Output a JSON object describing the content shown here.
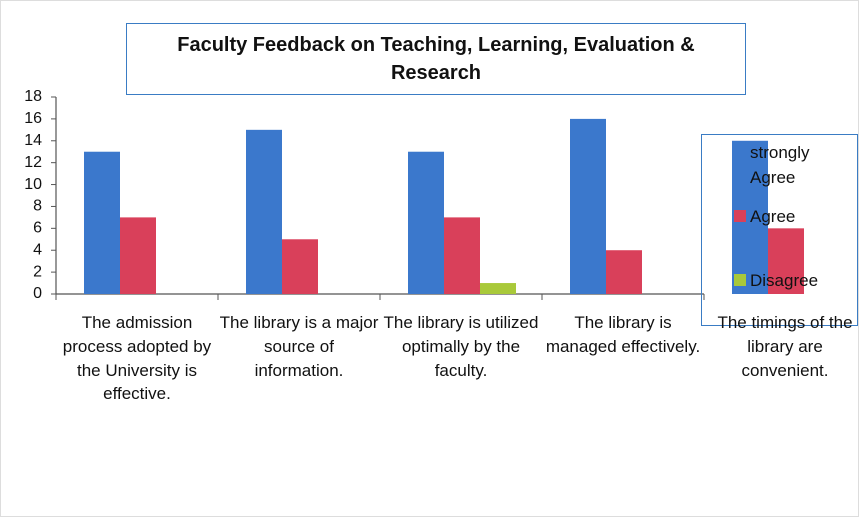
{
  "chart_data": {
    "type": "bar",
    "title": "Faculty Feedback on Teaching, Learning, Evaluation & Research",
    "categories": [
      "The admission process adopted by the University is effective.",
      "The library is a major source of information.",
      "The library is utilized optimally by the faculty.",
      "The library is managed effectively.",
      "The timings of the library are convenient."
    ],
    "series": [
      {
        "name": "strongly Agree",
        "color": "#3b78cc",
        "values": [
          13,
          15,
          13,
          16,
          14
        ]
      },
      {
        "name": "Agree",
        "color": "#d9405a",
        "values": [
          7,
          5,
          7,
          4,
          6
        ]
      },
      {
        "name": "Disagree",
        "color": "#a9c93a",
        "values": [
          0,
          0,
          1,
          0,
          0
        ]
      }
    ],
    "ylim": [
      0,
      18
    ],
    "yticks": [
      0,
      2,
      4,
      6,
      8,
      10,
      12,
      14,
      16,
      18
    ],
    "grid": false
  }
}
